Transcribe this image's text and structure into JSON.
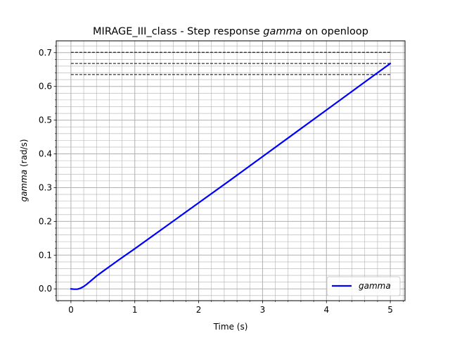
{
  "chart_data": {
    "type": "line",
    "title_prefix": "MIRAGE_III_class - Step response ",
    "title_var": "gamma",
    "title_suffix": " on openloop",
    "xlabel": "Time (s)",
    "ylabel_var": "gamma",
    "ylabel_unit": " (rad/s)",
    "xlim": [
      -0.23,
      5.23
    ],
    "ylim": [
      -0.035,
      0.735
    ],
    "xticks": [
      0,
      1,
      2,
      3,
      4,
      5
    ],
    "yticks": [
      0.0,
      0.1,
      0.2,
      0.3,
      0.4,
      0.5,
      0.6,
      0.7
    ],
    "xtick_labels": [
      "0",
      "1",
      "2",
      "3",
      "4",
      "5"
    ],
    "ytick_labels": [
      "0.0",
      "0.1",
      "0.2",
      "0.3",
      "0.4",
      "0.5",
      "0.6",
      "0.7"
    ],
    "grid": true,
    "minor_grid": true,
    "legend_placement": "lower-right",
    "series": [
      {
        "name": "gamma",
        "color": "#0000ff",
        "x": [
          0,
          0.05,
          0.1,
          0.15,
          0.2,
          0.25,
          0.3,
          0.35,
          0.4,
          0.5,
          0.75,
          1.0,
          1.5,
          2.0,
          2.5,
          3.0,
          3.5,
          4.0,
          4.5,
          5.0
        ],
        "y": [
          0.0,
          -0.001,
          -0.001,
          0.002,
          0.007,
          0.014,
          0.022,
          0.03,
          0.038,
          0.052,
          0.086,
          0.119,
          0.187,
          0.255,
          0.323,
          0.392,
          0.461,
          0.53,
          0.599,
          0.668
        ]
      }
    ],
    "reference_lines": [
      {
        "y": 0.701,
        "x_start": 0,
        "x_end": 5,
        "style": "dashed",
        "color": "#000000"
      },
      {
        "y": 0.668,
        "x_start": 0,
        "x_end": 5,
        "style": "dashed",
        "color": "#000000"
      },
      {
        "y": 0.635,
        "x_start": 0,
        "x_end": 5,
        "style": "dashed",
        "color": "#000000"
      }
    ]
  }
}
